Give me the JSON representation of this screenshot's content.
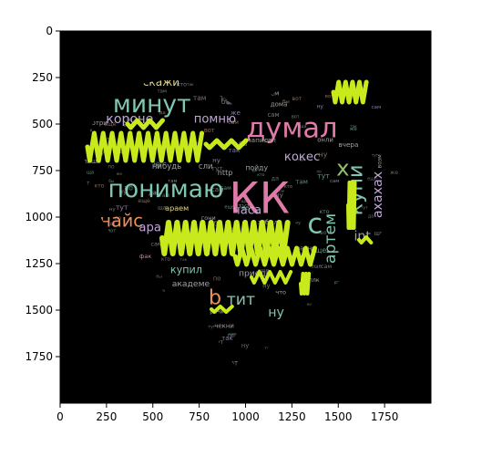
{
  "chart_data": {
    "type": "image",
    "title": "",
    "xlabel": "",
    "ylabel": "",
    "xlim": [
      0,
      2000
    ],
    "ylim": [
      2000,
      0
    ],
    "xticks": [
      0,
      250,
      500,
      750,
      1000,
      1250,
      1500,
      1750
    ],
    "yticks": [
      0,
      250,
      500,
      750,
      1000,
      1250,
      1500,
      1750
    ],
    "grid": false,
    "background": "#000000",
    "shape": "heart",
    "scribble_color": "#c8ea1c",
    "words": [
      {
        "text": "КК",
        "x": 1075,
        "y": 905,
        "size": 230,
        "color": "#e07aa8"
      },
      {
        "text": "думал",
        "x": 1250,
        "y": 525,
        "size": 150,
        "color": "#e07aa8"
      },
      {
        "text": "понимаю",
        "x": 570,
        "y": 850,
        "size": 130,
        "color": "#7fc7b1"
      },
      {
        "text": "минут",
        "x": 495,
        "y": 395,
        "size": 130,
        "color": "#7fc7b1"
      },
      {
        "text": "купи",
        "x": 1595,
        "y": 855,
        "size": 110,
        "color": "#7fc7b1",
        "rotate": -90
      },
      {
        "text": "найс",
        "x": 330,
        "y": 1020,
        "size": 95,
        "color": "#e89060"
      },
      {
        "text": "х",
        "x": 1525,
        "y": 735,
        "size": 120,
        "color": "#8fbf6b"
      },
      {
        "text": "артем",
        "x": 1460,
        "y": 1115,
        "size": 85,
        "color": "#7fc7b1",
        "rotate": -90
      },
      {
        "text": "ахахах",
        "x": 1715,
        "y": 880,
        "size": 70,
        "color": "#bfa7d9",
        "rotate": -90
      },
      {
        "text": "кокес",
        "x": 1305,
        "y": 680,
        "size": 65,
        "color": "#bfa7d9"
      },
      {
        "text": "короче",
        "x": 375,
        "y": 475,
        "size": 70,
        "color": "#bfa7d9"
      },
      {
        "text": "помню",
        "x": 835,
        "y": 475,
        "size": 65,
        "color": "#bfa7d9"
      },
      {
        "text": "скажи",
        "x": 545,
        "y": 275,
        "size": 60,
        "color": "#e0d58a"
      },
      {
        "text": "тит",
        "x": 975,
        "y": 1445,
        "size": 85,
        "color": "#7fc7b1"
      },
      {
        "text": "b",
        "x": 835,
        "y": 1435,
        "size": 110,
        "color": "#e89060"
      },
      {
        "text": "ну",
        "x": 1165,
        "y": 1515,
        "size": 70,
        "color": "#7fc7b1"
      },
      {
        "text": "часа",
        "x": 1010,
        "y": 965,
        "size": 65,
        "color": "#bfa7d9"
      },
      {
        "text": "ара",
        "x": 485,
        "y": 1060,
        "size": 65,
        "color": "#bfa7d9"
      },
      {
        "text": "int",
        "x": 1630,
        "y": 1105,
        "size": 70,
        "color": "#a0a0a0"
      },
      {
        "text": "с",
        "x": 1375,
        "y": 1040,
        "size": 150,
        "color": "#7fc7b1"
      },
      {
        "text": "купил",
        "x": 680,
        "y": 1285,
        "size": 55,
        "color": "#7fc7b1"
      },
      {
        "text": "академе",
        "x": 705,
        "y": 1360,
        "size": 45,
        "color": "#a0a0a0"
      },
      {
        "text": "приеде",
        "x": 1050,
        "y": 1305,
        "size": 45,
        "color": "#a0a0a0"
      },
      {
        "text": "нибудь",
        "x": 575,
        "y": 730,
        "size": 42,
        "color": "#a0a0a0"
      },
      {
        "text": "сли",
        "x": 785,
        "y": 730,
        "size": 42,
        "color": "#a0a0a0"
      },
      {
        "text": "http",
        "x": 890,
        "y": 760,
        "size": 40,
        "color": "#a0a0a0"
      },
      {
        "text": "пойду",
        "x": 1060,
        "y": 735,
        "size": 38,
        "color": "#a0a0a0"
      },
      {
        "text": "араем",
        "x": 630,
        "y": 950,
        "size": 40,
        "color": "#e0d58a"
      },
      {
        "text": "мем",
        "x": 1145,
        "y": 335,
        "size": 34,
        "color": "#a0a0a0"
      },
      {
        "text": "дома",
        "x": 1180,
        "y": 395,
        "size": 34,
        "color": "#a0a0a0"
      },
      {
        "text": "написал",
        "x": 1085,
        "y": 585,
        "size": 36,
        "color": "#a0a0a0"
      },
      {
        "text": "вчера",
        "x": 1555,
        "y": 610,
        "size": 36,
        "color": "#a0a0a0"
      },
      {
        "text": "онли",
        "x": 1430,
        "y": 585,
        "size": 34,
        "color": "#a0a0a0"
      },
      {
        "text": "напиши",
        "x": 150,
        "y": 700,
        "size": 34,
        "color": "#a0a0a0"
      },
      {
        "text": "смотри",
        "x": 190,
        "y": 495,
        "size": 34,
        "color": "#a0a0a0"
      },
      {
        "text": "чекни",
        "x": 885,
        "y": 1585,
        "size": 34,
        "color": "#a0a0a0"
      },
      {
        "text": "равно",
        "x": 1325,
        "y": 1170,
        "size": 34,
        "color": "#a0a0a0"
      },
      {
        "text": "забыл",
        "x": 1120,
        "y": 1030,
        "size": 34,
        "color": "#a0a0a0"
      },
      {
        "text": "гони",
        "x": 800,
        "y": 1005,
        "size": 32,
        "color": "#a0a0a0"
      },
      {
        "text": "что",
        "x": 1190,
        "y": 1405,
        "size": 32,
        "color": "#a0a0a0"
      },
      {
        "text": "прям",
        "x": 185,
        "y": 1055,
        "size": 32,
        "color": "#a0a0a0"
      },
      {
        "text": "фак",
        "x": 460,
        "y": 1210,
        "size": 32,
        "color": "#e07aa8"
      },
      {
        "text": "ричи",
        "x": 845,
        "y": 1510,
        "size": 30,
        "color": "#a0a0a0"
      },
      {
        "text": "чи",
        "x": 145,
        "y": 1170,
        "size": 32,
        "color": "#a0a0a0"
      },
      {
        "text": "плк",
        "x": 1370,
        "y": 1340,
        "size": 30,
        "color": "#a0a0a0"
      },
      {
        "text": "возм",
        "x": 1725,
        "y": 700,
        "size": 30,
        "color": "#a0a0a0",
        "rotate": -90
      }
    ]
  }
}
